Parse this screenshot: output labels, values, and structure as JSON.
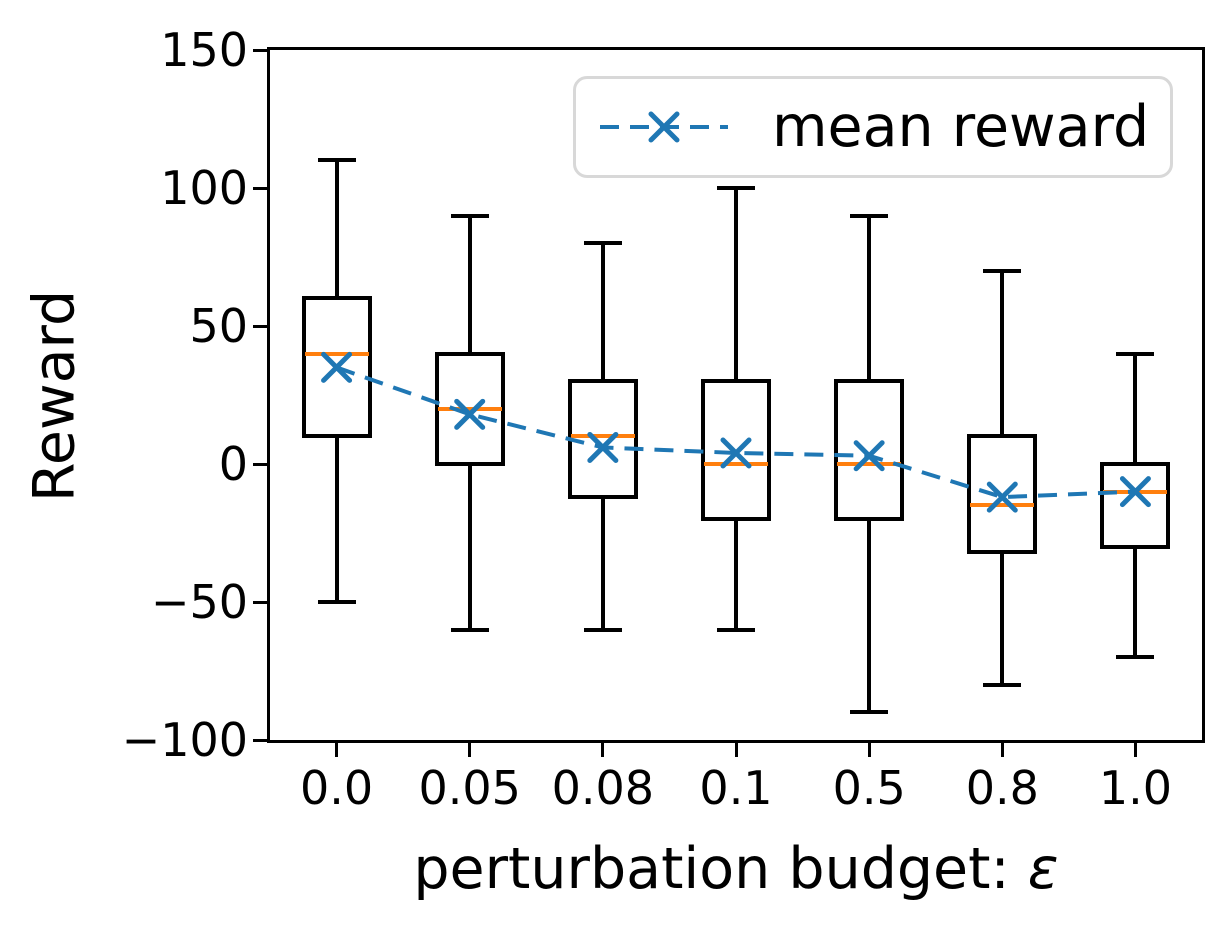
{
  "chart_data": {
    "type": "boxplot_with_mean_line",
    "title": "",
    "xlabel": "perturbation budget: ε",
    "xlabel_prefix": "perturbation budget: ",
    "xlabel_symbol": "ε",
    "ylabel": "Reward",
    "categories": [
      "0.0",
      "0.05",
      "0.08",
      "0.1",
      "0.5",
      "0.8",
      "1.0"
    ],
    "ylim": [
      -100,
      150
    ],
    "yticks": [
      150,
      100,
      50,
      0,
      -50,
      -100
    ],
    "grid": false,
    "legend": {
      "position": "upper right",
      "entries": [
        {
          "label": "mean reward",
          "marker": "x",
          "linestyle": "dashed",
          "color": "#1f77b4"
        }
      ]
    },
    "boxplots": [
      {
        "category": "0.0",
        "whisker_low": -50,
        "q1": 10,
        "median": 40,
        "q3": 60,
        "whisker_high": 110
      },
      {
        "category": "0.05",
        "whisker_low": -60,
        "q1": 0,
        "median": 20,
        "q3": 40,
        "whisker_high": 90
      },
      {
        "category": "0.08",
        "whisker_low": -60,
        "q1": -12,
        "median": 10,
        "q3": 30,
        "whisker_high": 80
      },
      {
        "category": "0.1",
        "whisker_low": -60,
        "q1": -20,
        "median": 0,
        "q3": 30,
        "whisker_high": 100
      },
      {
        "category": "0.5",
        "whisker_low": -90,
        "q1": -20,
        "median": 0,
        "q3": 30,
        "whisker_high": 90
      },
      {
        "category": "0.8",
        "whisker_low": -80,
        "q1": -32,
        "median": -15,
        "q3": 10,
        "whisker_high": 70
      },
      {
        "category": "1.0",
        "whisker_low": -70,
        "q1": -30,
        "median": -10,
        "q3": 0,
        "whisker_high": 40
      }
    ],
    "series": [
      {
        "name": "mean reward",
        "values": [
          35,
          18,
          6,
          4,
          3,
          -12,
          -10
        ]
      }
    ],
    "colors": {
      "box_edge": "#000000",
      "median": "#ff7f0e",
      "mean_line": "#1f77b4",
      "background": "#ffffff",
      "legend_border": "#d8d8d8"
    }
  }
}
